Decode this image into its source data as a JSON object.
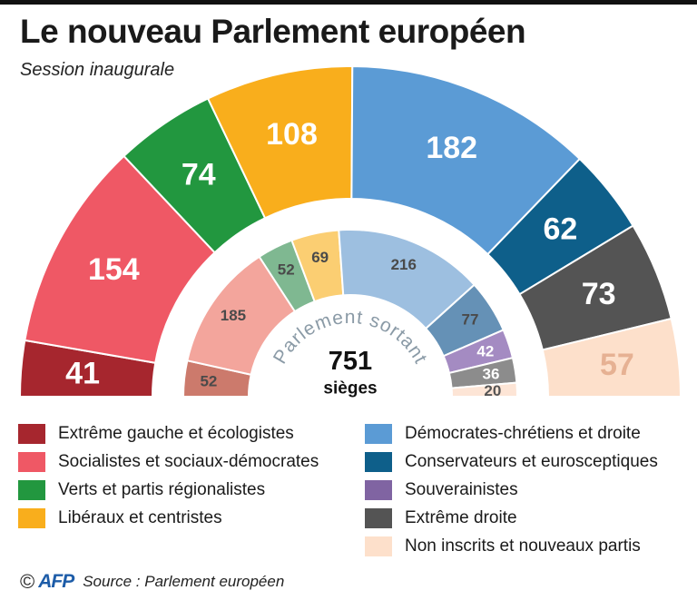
{
  "header": {
    "title": "Le nouveau Parlement européen",
    "subtitle": "Session inaugurale"
  },
  "chart_data": {
    "type": "semicircle_parliament",
    "title": "Le nouveau Parlement européen",
    "subtitle": "Session inaugurale",
    "categories": [
      "Extrême gauche et écologistes",
      "Socialistes et sociaux-démocrates",
      "Verts et partis régionalistes",
      "Libéraux et centristes",
      "Démocrates-chrétiens et droite",
      "Conservateurs et eurosceptiques",
      "Souverainistes",
      "Extrême droite",
      "Non inscrits et nouveaux partis"
    ],
    "colors": [
      "#a6262e",
      "#ef5865",
      "#22973f",
      "#f9ae1c",
      "#5b9bd5",
      "#0e5f8a",
      "#8064a2",
      "#545454",
      "#fde0cb"
    ],
    "series": [
      {
        "name": "",
        "values": [
          41,
          154,
          74,
          108,
          182,
          62,
          null,
          73,
          57
        ],
        "label_colors": [
          "#ffffff",
          "#ffffff",
          "#ffffff",
          "#ffffff",
          "#ffffff",
          "#ffffff",
          "#ffffff",
          "#ffffff",
          "#e6b193"
        ]
      },
      {
        "name": "Parlement sortant",
        "values": [
          52,
          185,
          52,
          69,
          216,
          77,
          42,
          36,
          20
        ],
        "colors": [
          "#cc7a6c",
          "#f3a59c",
          "#7fb891",
          "#fbce72",
          "#9dbfe0",
          "#6591b6",
          "#a48bc2",
          "#8c8c8c",
          "#fde5d6"
        ],
        "label_colors": [
          "#4a4a4a",
          "#4a4a4a",
          "#4a4a4a",
          "#4a4a4a",
          "#4a4a4a",
          "#4a4a4a",
          "#ffffff",
          "#ffffff",
          "#555555"
        ]
      }
    ],
    "center": {
      "total": "751",
      "unit": "sièges"
    }
  },
  "footer": {
    "copyright": "©",
    "agency": "AFP",
    "source": "Source : Parlement européen"
  }
}
